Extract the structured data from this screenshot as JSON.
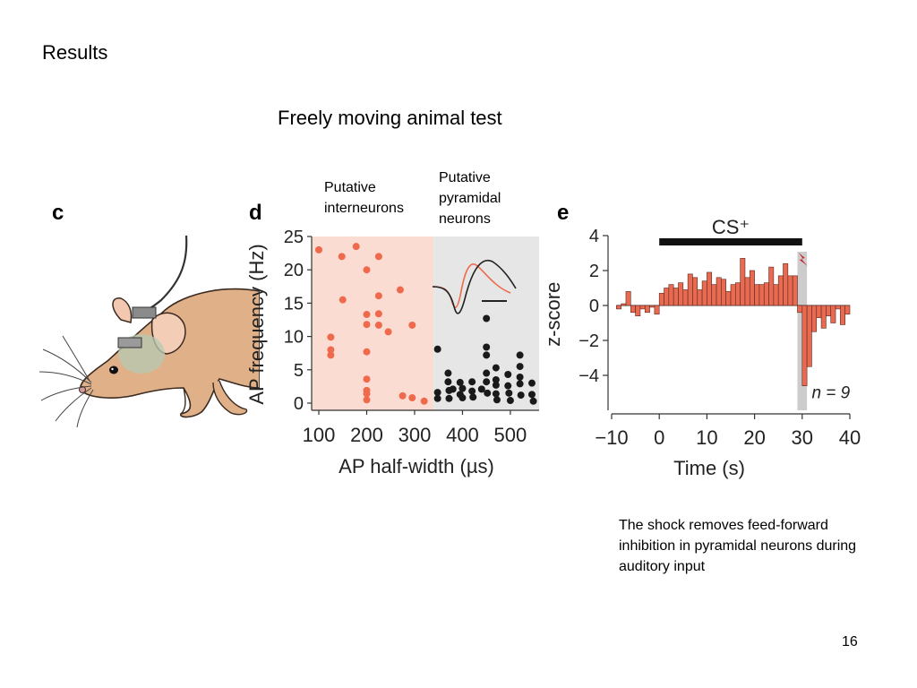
{
  "slide": {
    "heading": "Results",
    "title": "Freely moving animal test",
    "caption": "The shock removes feed-forward inhibition in pyramidal neurons during auditory input",
    "page_number": "16"
  },
  "panels": {
    "c": {
      "letter": "c"
    },
    "d": {
      "letter": "d",
      "label_interneurons": [
        "Putative",
        "interneurons"
      ],
      "label_pyramidal": [
        "Putative",
        "pyramidal",
        "neurons"
      ]
    },
    "e": {
      "letter": "e"
    }
  },
  "colors": {
    "interneuron": "#ef6a4c",
    "pyramidal": "#1a1a1a",
    "interneuron_bg": "#fbdcd3",
    "pyramidal_bg": "#e6e6e6",
    "bar_fill": "#e86a50",
    "shock_band": "#cccccc",
    "shock_icon": "#c8202a"
  },
  "chart_data": [
    {
      "type": "scatter",
      "panel": "d",
      "xlabel": "AP half-width (µs)",
      "ylabel": "AP frequency (Hz)",
      "xlim": [
        85,
        560
      ],
      "ylim": [
        0,
        25
      ],
      "xticks": [
        100,
        200,
        300,
        400,
        500
      ],
      "yticks": [
        0,
        5,
        10,
        15,
        20,
        25
      ],
      "region_split_x": 340,
      "series": [
        {
          "name": "Putative interneurons",
          "points": [
            [
              100,
              23
            ],
            [
              125,
              9.9
            ],
            [
              125,
              8
            ],
            [
              125,
              7.2
            ],
            [
              148,
              22
            ],
            [
              150,
              15.5
            ],
            [
              178,
              23.5
            ],
            [
              200,
              20
            ],
            [
              200,
              13.3
            ],
            [
              200,
              11.8
            ],
            [
              200,
              7.7
            ],
            [
              200,
              3.6
            ],
            [
              200,
              1.9
            ],
            [
              200,
              1.4
            ],
            [
              200,
              0.5
            ],
            [
              225,
              22
            ],
            [
              225,
              16.1
            ],
            [
              225,
              13.4
            ],
            [
              225,
              11.7
            ],
            [
              245,
              10.7
            ],
            [
              270,
              17
            ],
            [
              275,
              1.1
            ],
            [
              295,
              0.8
            ],
            [
              295,
              11.7
            ],
            [
              320,
              0.3
            ]
          ]
        },
        {
          "name": "Putative pyramidal neurons",
          "points": [
            [
              348,
              8.1
            ],
            [
              348,
              1.6
            ],
            [
              348,
              0.7
            ],
            [
              370,
              4.5
            ],
            [
              370,
              3.2
            ],
            [
              372,
              1.9
            ],
            [
              372,
              0.7
            ],
            [
              380,
              2.1
            ],
            [
              395,
              3.1
            ],
            [
              395,
              1.3
            ],
            [
              400,
              2.2
            ],
            [
              400,
              0.8
            ],
            [
              420,
              3.2
            ],
            [
              420,
              1.8
            ],
            [
              422,
              0.9
            ],
            [
              440,
              2.1
            ],
            [
              450,
              12.7
            ],
            [
              450,
              8.4
            ],
            [
              450,
              7.2
            ],
            [
              450,
              4.5
            ],
            [
              450,
              3.2
            ],
            [
              452,
              1.5
            ],
            [
              470,
              5.3
            ],
            [
              470,
              3.5
            ],
            [
              470,
              2.7
            ],
            [
              470,
              1.4
            ],
            [
              472,
              0.5
            ],
            [
              495,
              4.3
            ],
            [
              495,
              2.6
            ],
            [
              497,
              1.5
            ],
            [
              500,
              0.4
            ],
            [
              520,
              7.2
            ],
            [
              520,
              5.5
            ],
            [
              520,
              3.9
            ],
            [
              520,
              2.9
            ],
            [
              522,
              1.2
            ],
            [
              545,
              3.0
            ],
            [
              545,
              1.3
            ],
            [
              548,
              0.3
            ]
          ]
        }
      ]
    },
    {
      "type": "bar",
      "panel": "e",
      "xlabel": "Time (s)",
      "ylabel": "z-score",
      "xlim": [
        -10,
        40
      ],
      "ylim": [
        -6,
        4
      ],
      "xticks": [
        -10,
        0,
        10,
        20,
        30,
        40
      ],
      "yticks": [
        4,
        2,
        0,
        -2,
        -4
      ],
      "cs_label": "CS⁺",
      "cs_period": [
        0,
        30
      ],
      "shock_time": [
        29,
        31
      ],
      "n_label": "n = 9",
      "bin_width": 1,
      "bin_starts": [
        -9,
        -8,
        -7,
        -6,
        -5,
        -4,
        -3,
        -2,
        -1,
        0,
        1,
        2,
        3,
        4,
        5,
        6,
        7,
        8,
        9,
        10,
        11,
        12,
        13,
        14,
        15,
        16,
        17,
        18,
        19,
        20,
        21,
        22,
        23,
        24,
        25,
        26,
        27,
        28,
        29,
        30,
        31,
        32,
        33,
        34,
        35,
        36,
        37,
        38,
        39
      ],
      "values": [
        -0.2,
        0.1,
        0.8,
        -0.4,
        -0.6,
        -0.2,
        -0.4,
        -0.1,
        -0.5,
        0.7,
        1.0,
        1.2,
        1.0,
        1.3,
        0.9,
        1.8,
        1.6,
        0.9,
        1.4,
        1.9,
        1.2,
        1.6,
        1.5,
        0.8,
        1.2,
        1.3,
        2.7,
        1.6,
        2.0,
        1.2,
        1.2,
        1.3,
        2.2,
        1.2,
        1.7,
        2.4,
        1.7,
        1.7,
        -0.4,
        -4.6,
        -3.5,
        -1.5,
        -0.7,
        -1.3,
        -0.6,
        -1.0,
        -0.2,
        -1.1,
        -0.5
      ]
    }
  ]
}
